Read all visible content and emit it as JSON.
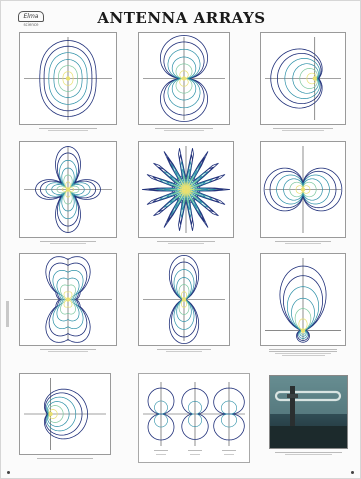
{
  "header": {
    "title": "ANTENNA ARRAYS",
    "logo_text": "Elma",
    "logo_subtext": "science"
  },
  "plots": [
    {
      "id": "p1",
      "pattern": "ellipse"
    },
    {
      "id": "p2",
      "pattern": "figure8-vertical"
    },
    {
      "id": "p3",
      "pattern": "cardioid-left"
    },
    {
      "id": "p4",
      "pattern": "cloverleaf"
    },
    {
      "id": "p5",
      "pattern": "starburst"
    },
    {
      "id": "p6",
      "pattern": "figure8-horizontal"
    },
    {
      "id": "p7",
      "pattern": "figure8-vertical-lobed"
    },
    {
      "id": "p8",
      "pattern": "figure8-vertical-narrow"
    },
    {
      "id": "p9",
      "pattern": "endfire-up"
    },
    {
      "id": "p10",
      "pattern": "cardioid-right"
    },
    {
      "id": "p11",
      "pattern": "three-dipoles"
    }
  ],
  "colors": {
    "contour_outer": "#20307a",
    "contour_mid": "#2a8fa6",
    "contour_inner": "#7ec8a0",
    "contour_core": "#e8e070",
    "axis": "#444444"
  },
  "photo": {
    "description_icon": "antenna-photo"
  }
}
